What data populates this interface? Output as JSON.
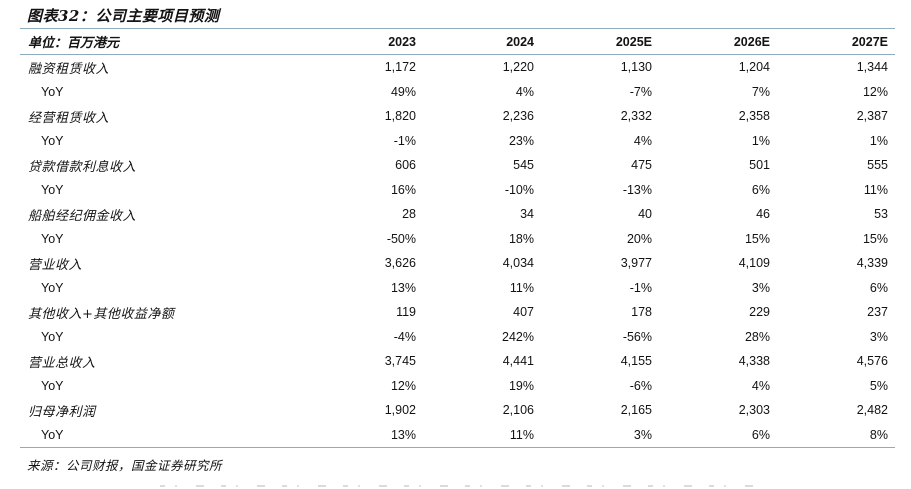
{
  "title": "图表32：公司主要项目预测",
  "table": {
    "unit_label": "单位：百万港元",
    "columns": [
      "2023",
      "2024",
      "2025E",
      "2026E",
      "2027E"
    ],
    "rows": [
      {
        "label": "融资租赁收入",
        "indent": false,
        "values": [
          "1,172",
          "1,220",
          "1,130",
          "1,204",
          "1,344"
        ]
      },
      {
        "label": "YoY",
        "indent": true,
        "values": [
          "49%",
          "4%",
          "-7%",
          "7%",
          "12%"
        ]
      },
      {
        "label": "经营租赁收入",
        "indent": false,
        "values": [
          "1,820",
          "2,236",
          "2,332",
          "2,358",
          "2,387"
        ]
      },
      {
        "label": "YoY",
        "indent": true,
        "values": [
          "-1%",
          "23%",
          "4%",
          "1%",
          "1%"
        ]
      },
      {
        "label": "贷款借款利息收入",
        "indent": false,
        "values": [
          "606",
          "545",
          "475",
          "501",
          "555"
        ]
      },
      {
        "label": "YoY",
        "indent": true,
        "values": [
          "16%",
          "-10%",
          "-13%",
          "6%",
          "11%"
        ]
      },
      {
        "label": "船舶经纪佣金收入",
        "indent": false,
        "values": [
          "28",
          "34",
          "40",
          "46",
          "53"
        ]
      },
      {
        "label": "YoY",
        "indent": true,
        "values": [
          "-50%",
          "18%",
          "20%",
          "15%",
          "15%"
        ]
      },
      {
        "label": "营业收入",
        "indent": false,
        "values": [
          "3,626",
          "4,034",
          "3,977",
          "4,109",
          "4,339"
        ]
      },
      {
        "label": "YoY",
        "indent": true,
        "values": [
          "13%",
          "11%",
          "-1%",
          "3%",
          "6%"
        ]
      },
      {
        "label": "其他收入+其他收益净额",
        "indent": false,
        "values": [
          "119",
          "407",
          "178",
          "229",
          "237"
        ]
      },
      {
        "label": "YoY",
        "indent": true,
        "values": [
          "-4%",
          "242%",
          "-56%",
          "28%",
          "3%"
        ]
      },
      {
        "label": "营业总收入",
        "indent": false,
        "values": [
          "3,745",
          "4,441",
          "4,155",
          "4,338",
          "4,576"
        ]
      },
      {
        "label": "YoY",
        "indent": true,
        "values": [
          "12%",
          "19%",
          "-6%",
          "4%",
          "5%"
        ]
      },
      {
        "label": "归母净利润",
        "indent": false,
        "values": [
          "1,902",
          "2,106",
          "2,165",
          "2,303",
          "2,482"
        ]
      },
      {
        "label": "YoY",
        "indent": true,
        "values": [
          "13%",
          "11%",
          "3%",
          "6%",
          "8%"
        ]
      }
    ]
  },
  "source": "来源：公司财报，国金证券研究所",
  "colors": {
    "rule_line": "#8FACBE",
    "text": "#131313"
  }
}
